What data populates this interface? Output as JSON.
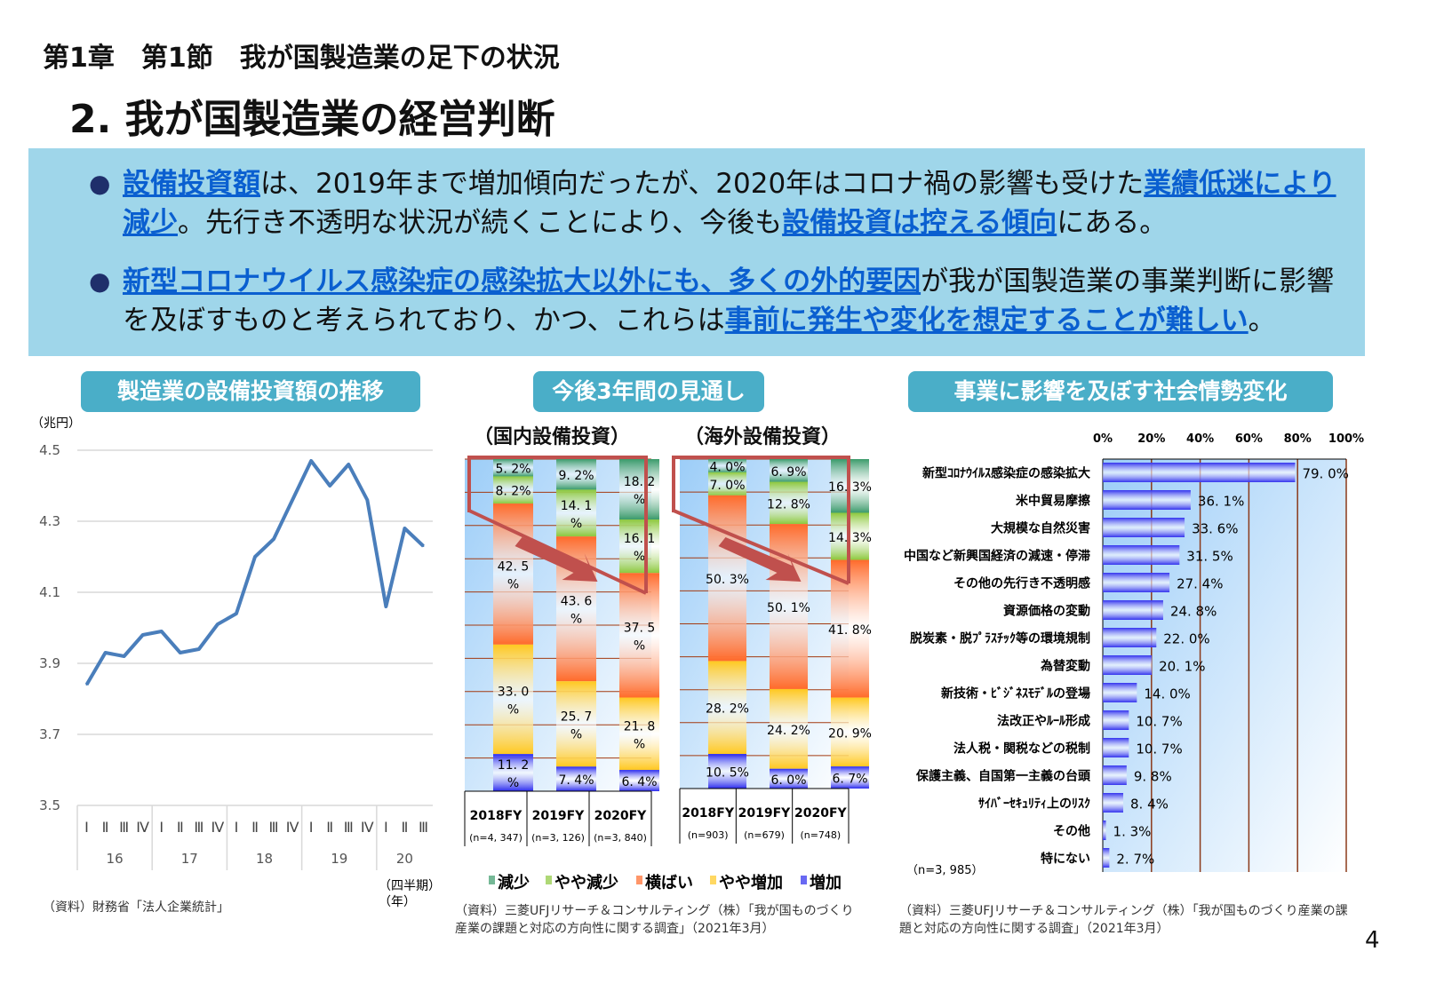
{
  "header": {
    "chapter": "第1章　第1節　我が国製造業の足下の状況",
    "title": "2.  我が国製造業の経営判断"
  },
  "bullets": [
    [
      {
        "t": "設備投資額",
        "em": true
      },
      {
        "t": "は、2019年まで増加傾向だったが、2020年はコロナ禍の影響も受けた"
      },
      {
        "t": "業績低迷により減少",
        "em": true
      },
      {
        "t": "。先行き不透明な状況が続くことにより、今後も"
      },
      {
        "t": "設備投資は控える傾向",
        "em": true
      },
      {
        "t": "にある。"
      }
    ],
    [
      {
        "t": "新型コロナウイルス感染症の感染拡大以外にも、多くの外的要因",
        "em": true
      },
      {
        "t": "が我が国製造業の事業判断に影響を及ぼすものと考えられており、かつ、これらは"
      },
      {
        "t": "事前に発生や変化を想定することが難しい",
        "em": true
      },
      {
        "t": "。"
      }
    ]
  ],
  "panels": {
    "left_title": "製造業の設備投資額の推移",
    "middle_title": "今後3年間の見通し",
    "right_title": "事業に影響を及ぼす社会情勢変化",
    "left_source": "（資料）財務省「法人企業統計」",
    "middle_source": "（資料）三菱UFJリサーチ＆コンサルティング（株）「我が国ものづくり産業の課題と対応の方向性に関する調査」（2021年3月）",
    "right_source": "（資料）三菱UFJリサーチ＆コンサルティング（株）「我が国ものづくり産業の課題と対応の方向性に関する調査」（2021年3月）",
    "page_number": "4"
  },
  "chart_data": [
    {
      "type": "line",
      "ylabel": "（兆円）",
      "xlabel": "（四半期）\n（年）",
      "ylim": [
        3.5,
        4.5
      ],
      "yticks": [
        "3.5",
        "3.7",
        "3.9",
        "4.1",
        "4.3",
        "4.5"
      ],
      "grid": true,
      "quarters": [
        "Ⅰ",
        "Ⅱ",
        "Ⅲ",
        "Ⅳ",
        "Ⅰ",
        "Ⅱ",
        "Ⅲ",
        "Ⅳ",
        "Ⅰ",
        "Ⅱ",
        "Ⅲ",
        "Ⅳ",
        "Ⅰ",
        "Ⅱ",
        "Ⅲ",
        "Ⅳ",
        "Ⅰ",
        "Ⅱ",
        "Ⅲ"
      ],
      "years": [
        "16",
        "17",
        "18",
        "19",
        "20"
      ],
      "color": "#4a7ebb",
      "values": [
        3.84,
        3.93,
        3.92,
        3.98,
        3.99,
        3.93,
        3.94,
        4.01,
        4.04,
        4.2,
        4.25,
        4.36,
        4.47,
        4.4,
        4.46,
        4.36,
        4.06,
        4.28,
        4.23
      ]
    },
    {
      "type": "bar",
      "stacked": true,
      "title": "（国内設備投資）",
      "categories": [
        "2018FY",
        "2019FY",
        "2020FY"
      ],
      "n": [
        "(n=4, 347)",
        "(n=3, 126)",
        "(n=3, 840)"
      ],
      "series": [
        {
          "name": "減少",
          "values": [
            5.2,
            9.2,
            18.2
          ],
          "color": "#3a9a6a"
        },
        {
          "name": "やや減少",
          "values": [
            8.2,
            14.1,
            16.1
          ],
          "color": "#8cc83c"
        },
        {
          "name": "横ばい",
          "values": [
            42.5,
            43.6,
            37.5
          ],
          "color": "#ff6a2a"
        },
        {
          "name": "やや増加",
          "values": [
            33.0,
            25.7,
            21.8
          ],
          "color": "#ffc820"
        },
        {
          "name": "増加",
          "values": [
            11.2,
            7.4,
            6.4
          ],
          "color": "#2a2aee"
        }
      ],
      "labels": [
        [
          "5. 2%",
          "8. 2%",
          "42. 5\n%",
          "33. 0\n%",
          "11. 2\n%"
        ],
        [
          "9. 2%",
          "14. 1\n%",
          "43. 6\n%",
          "25. 7\n%",
          "7. 4%"
        ],
        [
          "18. 2\n%",
          "16. 1\n%",
          "37. 5\n%",
          "21. 8\n%",
          "6. 4%"
        ]
      ]
    },
    {
      "type": "bar",
      "stacked": true,
      "title": "（海外設備投資）",
      "categories": [
        "2018FY",
        "2019FY",
        "2020FY"
      ],
      "n": [
        "(n=903)",
        "(n=679)",
        "(n=748)"
      ],
      "series": [
        {
          "name": "減少",
          "values": [
            4.0,
            6.9,
            16.3
          ],
          "color": "#3a9a6a"
        },
        {
          "name": "やや減少",
          "values": [
            7.0,
            12.8,
            14.3
          ],
          "color": "#8cc83c"
        },
        {
          "name": "横ばい",
          "values": [
            50.3,
            50.1,
            41.8
          ],
          "color": "#ff6a2a"
        },
        {
          "name": "やや増加",
          "values": [
            28.2,
            24.2,
            20.9
          ],
          "color": "#ffc820"
        },
        {
          "name": "増加",
          "values": [
            10.5,
            6.0,
            6.7
          ],
          "color": "#2a2aee"
        }
      ],
      "labels": [
        [
          "4. 0%",
          "7. 0%",
          "50. 3%",
          "28. 2%",
          "10. 5%"
        ],
        [
          "6. 9%",
          "12. 8%",
          "50. 1%",
          "24. 2%",
          "6. 0%"
        ],
        [
          "16. 3%",
          "14. 3%",
          "41. 8%",
          "20. 9%",
          "6. 7%"
        ]
      ],
      "legend": [
        "減少",
        "やや減少",
        "横ばい",
        "やや増加",
        "増加"
      ],
      "legend_position": "bottom"
    },
    {
      "type": "bar",
      "orientation": "horizontal",
      "xlim": [
        0,
        100
      ],
      "xticks": [
        "0%",
        "20%",
        "40%",
        "60%",
        "80%",
        "100%"
      ],
      "note": "（n=3, 985）",
      "color": "#3333ee",
      "categories": [
        "新型ｺﾛﾅｳｲﾙｽ感染症の感染拡大",
        "米中貿易摩擦",
        "大規模な自然災害",
        "中国など新興国経済の減速・停滞",
        "その他の先行き不透明感",
        "資源価格の変動",
        "脱炭素・脱ﾌﾟﾗｽﾁｯｸ等の環境規制",
        "為替変動",
        "新技術・ﾋﾞｼﾞﾈｽﾓﾃﾞﾙの登場",
        "法改正やﾙｰﾙ形成",
        "法人税・関税などの税制",
        "保護主義、自国第一主義の台頭",
        "ｻｲﾊﾞｰｾｷｭﾘﾃｨ上のﾘｽｸ",
        "その他",
        "特にない"
      ],
      "values": [
        79.0,
        36.1,
        33.6,
        31.5,
        27.4,
        24.8,
        22.0,
        20.1,
        14.0,
        10.7,
        10.7,
        9.8,
        8.4,
        1.3,
        2.7
      ],
      "labels": [
        "79. 0%",
        "36. 1%",
        "33. 6%",
        "31. 5%",
        "27. 4%",
        "24. 8%",
        "22. 0%",
        "20. 1%",
        "14. 0%",
        "10. 7%",
        "10. 7%",
        "9. 8%",
        "8. 4%",
        "1. 3%",
        "2. 7%"
      ]
    }
  ]
}
